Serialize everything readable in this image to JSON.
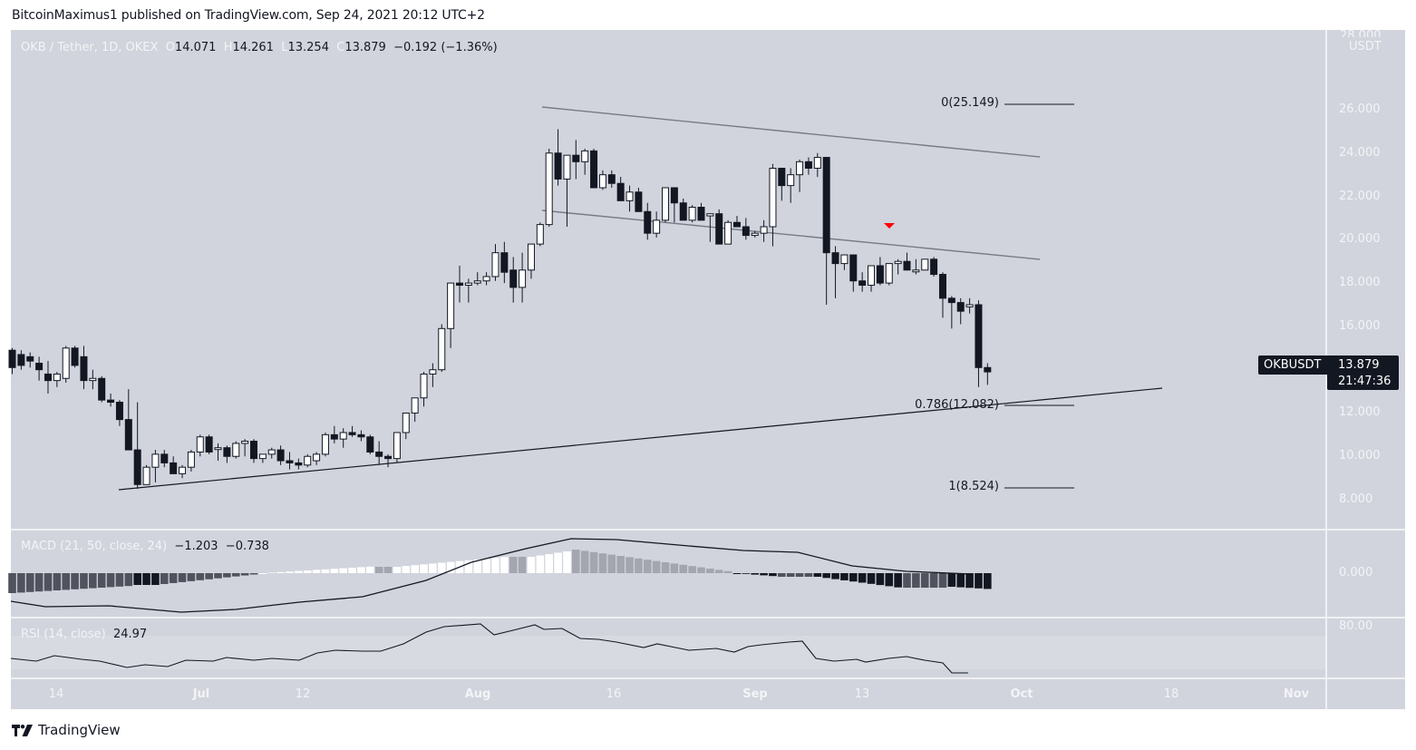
{
  "header": {
    "published_by": "BitcoinMaximus1 published on TradingView.com, Sep 24, 2021 20:12 UTC+2"
  },
  "symbol_legend": {
    "title": "OKB / Tether, 1D, OKEX",
    "open_label": "O",
    "open": "14.071",
    "high_label": "H",
    "high": "14.261",
    "low_label": "L",
    "low": "13.254",
    "close_label": "C",
    "close": "13.879",
    "change": "−0.192 (−1.36%)"
  },
  "price_axis": {
    "currency": "USDT",
    "top_label": "28.000",
    "ticks": [
      "26.000",
      "24.000",
      "22.000",
      "20.000",
      "18.000",
      "16.000",
      "12.000",
      "10.000",
      "8.000"
    ]
  },
  "last_price_tag": {
    "symbol": "OKBUSDT",
    "price": "13.879",
    "countdown": "21:47:36"
  },
  "fibonacci": [
    {
      "label": "0(25.149)",
      "level": 0,
      "price": 25.149
    },
    {
      "label": "0.786(12.082)",
      "level": 0.786,
      "price": 12.082
    },
    {
      "label": "1(8.524)",
      "level": 1,
      "price": 8.524
    }
  ],
  "macd": {
    "title": "MACD (21, 50, close, 24)",
    "value1": "−1.203",
    "value2": "−0.738",
    "axis_label": "0.000"
  },
  "rsi": {
    "title": "RSI (14, close)",
    "value": "24.97",
    "axis_label": "80.00"
  },
  "time_axis": [
    {
      "label": "14",
      "bold": false
    },
    {
      "label": "Jul",
      "bold": true
    },
    {
      "label": "12",
      "bold": false
    },
    {
      "label": "Aug",
      "bold": true
    },
    {
      "label": "16",
      "bold": false
    },
    {
      "label": "Sep",
      "bold": true
    },
    {
      "label": "13",
      "bold": false
    },
    {
      "label": "Oct",
      "bold": true
    },
    {
      "label": "18",
      "bold": false
    },
    {
      "label": "Nov",
      "bold": true
    }
  ],
  "footer": {
    "brand": "TradingView"
  },
  "colors": {
    "background": "#d1d4dc",
    "bear_candle": "#131722",
    "bull_candle": "#ffffff",
    "trendline": "#131722",
    "channel_line": "#787b86",
    "sell_marker": "#ff0000",
    "macd_hist_dark": "#131722",
    "macd_hist_mid": "#50535e",
    "macd_hist_light_gray": "#a3a6af",
    "macd_hist_white": "#ffffff"
  },
  "chart_data": {
    "type": "candlestick",
    "title": "OKB / Tether, 1D, OKEX",
    "xlabel": "",
    "ylabel": "USDT",
    "ylim": [
      7.5,
      28
    ],
    "x_ticks": [
      "14",
      "Jul",
      "12",
      "Aug",
      "16",
      "Sep",
      "13",
      "Oct",
      "18",
      "Nov"
    ],
    "date_range": [
      "2021-06-09",
      "2021-09-24"
    ],
    "candles": [
      [
        14.9,
        15.0,
        13.8,
        14.1
      ],
      [
        14.7,
        14.9,
        14.0,
        14.2
      ],
      [
        14.6,
        14.8,
        14.1,
        14.4
      ],
      [
        14.3,
        14.6,
        13.5,
        14.0
      ],
      [
        13.8,
        14.4,
        12.9,
        13.5
      ],
      [
        13.5,
        13.9,
        13.2,
        13.8
      ],
      [
        13.6,
        15.1,
        13.4,
        15.0
      ],
      [
        15.0,
        15.1,
        14.1,
        14.2
      ],
      [
        14.6,
        15.1,
        13.1,
        13.5
      ],
      [
        13.5,
        14.0,
        13.1,
        13.6
      ],
      [
        13.6,
        13.7,
        12.5,
        12.6
      ],
      [
        12.6,
        12.9,
        12.3,
        12.5
      ],
      [
        12.5,
        12.6,
        11.4,
        11.7
      ],
      [
        11.7,
        13.1,
        10.5,
        10.3
      ],
      [
        10.3,
        12.5,
        8.5,
        8.7
      ],
      [
        8.7,
        9.6,
        8.9,
        9.5
      ],
      [
        9.5,
        10.3,
        8.8,
        10.1
      ],
      [
        10.1,
        10.3,
        9.5,
        9.7
      ],
      [
        9.7,
        10.0,
        9.2,
        9.2
      ],
      [
        9.2,
        9.6,
        9.0,
        9.5
      ],
      [
        9.5,
        10.3,
        9.3,
        10.2
      ],
      [
        10.2,
        11.0,
        10.0,
        10.9
      ],
      [
        10.9,
        11.0,
        10.1,
        10.2
      ],
      [
        10.4,
        10.6,
        9.8,
        10.4
      ],
      [
        10.4,
        10.5,
        9.7,
        10.0
      ],
      [
        10.0,
        10.7,
        9.9,
        10.6
      ],
      [
        10.6,
        10.8,
        10.0,
        10.7
      ],
      [
        10.7,
        10.8,
        9.7,
        9.9
      ],
      [
        9.9,
        10.1,
        9.7,
        10.1
      ],
      [
        10.1,
        10.4,
        9.9,
        10.3
      ],
      [
        10.3,
        10.5,
        9.6,
        9.8
      ],
      [
        9.8,
        10.2,
        9.4,
        9.7
      ],
      [
        9.7,
        9.9,
        9.4,
        9.6
      ],
      [
        9.6,
        10.1,
        9.5,
        10.0
      ],
      [
        9.8,
        10.2,
        9.6,
        10.1
      ],
      [
        10.1,
        11.1,
        10.0,
        11.0
      ],
      [
        11.0,
        11.4,
        10.6,
        10.8
      ],
      [
        10.8,
        11.3,
        10.4,
        11.1
      ],
      [
        11.1,
        11.4,
        10.9,
        11.0
      ],
      [
        11.0,
        11.2,
        10.7,
        10.9
      ],
      [
        10.9,
        11.0,
        10.1,
        10.2
      ],
      [
        10.2,
        10.7,
        9.6,
        10.0
      ],
      [
        10.0,
        10.1,
        9.5,
        9.9
      ],
      [
        9.9,
        11.1,
        9.7,
        11.1
      ],
      [
        11.1,
        12.0,
        10.8,
        12.0
      ],
      [
        12.0,
        12.7,
        11.6,
        12.7
      ],
      [
        12.7,
        13.9,
        12.3,
        13.8
      ],
      [
        13.8,
        14.3,
        13.2,
        14.0
      ],
      [
        14.0,
        16.1,
        13.9,
        15.9
      ],
      [
        15.9,
        18.0,
        15.0,
        18.0
      ],
      [
        18.0,
        18.8,
        17.1,
        17.9
      ],
      [
        17.9,
        18.2,
        17.1,
        18.0
      ],
      [
        18.0,
        18.5,
        17.9,
        18.1
      ],
      [
        18.1,
        18.5,
        17.9,
        18.3
      ],
      [
        18.3,
        19.8,
        18.1,
        19.4
      ],
      [
        19.4,
        19.9,
        18.0,
        18.5
      ],
      [
        18.6,
        19.2,
        17.1,
        17.8
      ],
      [
        17.8,
        19.4,
        17.1,
        18.6
      ],
      [
        18.6,
        19.7,
        18.2,
        19.8
      ],
      [
        19.8,
        20.8,
        19.7,
        20.7
      ],
      [
        20.7,
        24.2,
        20.6,
        24.0
      ],
      [
        24.0,
        25.1,
        22.5,
        22.8
      ],
      [
        22.8,
        23.8,
        20.6,
        23.9
      ],
      [
        23.9,
        24.6,
        22.8,
        23.6
      ],
      [
        23.6,
        24.2,
        23.0,
        24.1
      ],
      [
        24.1,
        24.2,
        22.4,
        22.4
      ],
      [
        22.4,
        23.2,
        22.3,
        23.0
      ],
      [
        23.0,
        23.2,
        22.4,
        22.6
      ],
      [
        22.6,
        22.9,
        21.8,
        21.8
      ],
      [
        21.8,
        22.5,
        21.3,
        22.2
      ],
      [
        22.2,
        22.4,
        21.4,
        21.3
      ],
      [
        21.3,
        21.7,
        20.0,
        20.3
      ],
      [
        20.3,
        21.3,
        20.1,
        20.9
      ],
      [
        20.9,
        22.4,
        20.8,
        22.4
      ],
      [
        22.4,
        22.4,
        20.8,
        21.7
      ],
      [
        21.7,
        21.9,
        20.9,
        20.9
      ],
      [
        20.9,
        21.6,
        20.8,
        21.5
      ],
      [
        21.5,
        21.7,
        20.9,
        20.9
      ],
      [
        21.1,
        21.1,
        19.9,
        21.2
      ],
      [
        21.2,
        21.4,
        19.8,
        19.8
      ],
      [
        19.8,
        20.9,
        20.3,
        20.8
      ],
      [
        20.8,
        21.1,
        20.6,
        20.6
      ],
      [
        20.6,
        21.0,
        20.0,
        20.2
      ],
      [
        20.2,
        20.4,
        20.1,
        20.3
      ],
      [
        20.3,
        20.9,
        19.9,
        20.6
      ],
      [
        20.6,
        23.5,
        19.7,
        23.3
      ],
      [
        23.3,
        23.1,
        21.8,
        22.5
      ],
      [
        22.5,
        23.3,
        21.7,
        23.0
      ],
      [
        23.0,
        23.7,
        22.2,
        23.6
      ],
      [
        23.6,
        23.8,
        23.0,
        23.3
      ],
      [
        23.3,
        24.0,
        22.9,
        23.8
      ],
      [
        23.8,
        23.8,
        17.0,
        19.4
      ],
      [
        19.4,
        19.7,
        17.3,
        18.9
      ],
      [
        18.9,
        19.3,
        18.6,
        19.3
      ],
      [
        19.3,
        19.3,
        17.6,
        18.1
      ],
      [
        18.1,
        18.5,
        17.6,
        17.9
      ],
      [
        17.9,
        18.8,
        17.6,
        18.8
      ],
      [
        18.8,
        19.2,
        17.9,
        18.0
      ],
      [
        18.0,
        18.9,
        17.9,
        18.9
      ],
      [
        18.9,
        19.1,
        18.4,
        19.0
      ],
      [
        19.0,
        19.4,
        18.6,
        18.6
      ],
      [
        18.6,
        19.1,
        18.4,
        18.6
      ],
      [
        18.6,
        19.1,
        18.6,
        19.1
      ],
      [
        19.1,
        19.2,
        18.3,
        18.4
      ],
      [
        18.4,
        18.5,
        16.4,
        17.3
      ],
      [
        17.3,
        17.4,
        15.9,
        17.1
      ],
      [
        17.1,
        17.3,
        16.1,
        16.7
      ],
      [
        16.9,
        17.3,
        16.6,
        17.0
      ],
      [
        17.0,
        17.2,
        13.2,
        14.1
      ],
      [
        14.1,
        14.3,
        13.3,
        13.9
      ]
    ],
    "lines": [
      {
        "name": "ascending support",
        "from": [
          "Jun 20",
          8.4
        ],
        "to": [
          "Oct 19",
          12.9
        ]
      },
      {
        "name": "channel top",
        "from": [
          "Aug 8",
          25.1
        ],
        "to": [
          "Oct 1",
          22.9
        ]
      },
      {
        "name": "channel bottom",
        "from": [
          "Aug 8",
          20.6
        ],
        "to": [
          "Oct 1",
          18.4
        ]
      }
    ],
    "annotations": [
      "red sell arrow at Sep 15 above 19.4"
    ],
    "macd_histogram_note": "negative, deepening to -1.203; signal -0.738",
    "rsi_last": 24.97
  }
}
